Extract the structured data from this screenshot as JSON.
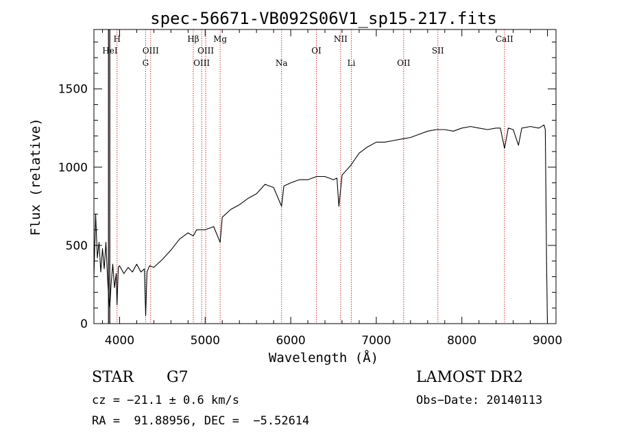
{
  "chart_data": {
    "type": "line",
    "title": "spec-56671-VB092S06V1_sp15-217.fits",
    "xlabel": "Wavelength (Å)",
    "ylabel": "Flux (relative)",
    "xlim": [
      3700,
      9100
    ],
    "ylim": [
      0,
      1880
    ],
    "xticks": [
      4000,
      5000,
      6000,
      7000,
      8000,
      9000
    ],
    "yticks": [
      0,
      500,
      1000,
      1500
    ],
    "grid": false,
    "series": [
      {
        "color": "#000000",
        "x": [
          3700,
          3720,
          3740,
          3760,
          3780,
          3800,
          3820,
          3840,
          3860,
          3875,
          3885,
          3900,
          3920,
          3940,
          3960,
          3970,
          3985,
          4000,
          4050,
          4100,
          4150,
          4200,
          4250,
          4290,
          4305,
          4320,
          4350,
          4400,
          4500,
          4600,
          4700,
          4800,
          4861,
          4900,
          5000,
          5100,
          5175,
          5200,
          5300,
          5400,
          5500,
          5600,
          5700,
          5800,
          5893,
          5920,
          6000,
          6100,
          6200,
          6300,
          6400,
          6500,
          6540,
          6563,
          6600,
          6700,
          6800,
          6900,
          7000,
          7100,
          7200,
          7300,
          7400,
          7500,
          7600,
          7700,
          7800,
          7900,
          8000,
          8100,
          8200,
          8300,
          8400,
          8450,
          8498,
          8542,
          8600,
          8662,
          8700,
          8800,
          8900,
          8960,
          8975,
          8990,
          9000
        ],
        "y": [
          300,
          700,
          420,
          520,
          330,
          480,
          350,
          520,
          280,
          150,
          100,
          250,
          380,
          230,
          320,
          120,
          360,
          370,
          320,
          360,
          330,
          380,
          330,
          350,
          50,
          330,
          370,
          360,
          410,
          470,
          540,
          580,
          560,
          600,
          600,
          620,
          520,
          680,
          730,
          760,
          800,
          830,
          890,
          870,
          750,
          880,
          900,
          920,
          920,
          940,
          940,
          920,
          930,
          750,
          950,
          1010,
          1090,
          1130,
          1160,
          1160,
          1170,
          1180,
          1190,
          1210,
          1230,
          1240,
          1240,
          1230,
          1250,
          1260,
          1250,
          1240,
          1250,
          1250,
          1120,
          1250,
          1240,
          1140,
          1250,
          1260,
          1250,
          1270,
          1240,
          380,
          0
        ]
      }
    ],
    "lines": [
      {
        "label": "HeI",
        "wavelength": 3888,
        "row": 2
      },
      {
        "label": "H",
        "wavelength": 3970,
        "row": 1
      },
      {
        "label": "OIII",
        "wavelength": 4363,
        "row": 2
      },
      {
        "label": "G",
        "wavelength": 4304,
        "row": 3
      },
      {
        "label": "Hβ",
        "wavelength": 4861,
        "row": 1
      },
      {
        "label": "OIII",
        "wavelength": 5007,
        "row": 2
      },
      {
        "label": "OIII",
        "wavelength": 4959,
        "row": 3
      },
      {
        "label": "Mg",
        "wavelength": 5175,
        "row": 1
      },
      {
        "label": "Na",
        "wavelength": 5893,
        "row": 3
      },
      {
        "label": "OI",
        "wavelength": 6300,
        "row": 2
      },
      {
        "label": "NII",
        "wavelength": 6583,
        "row": 1
      },
      {
        "label": "Li",
        "wavelength": 6708,
        "row": 3
      },
      {
        "label": "OII",
        "wavelength": 7320,
        "row": 3
      },
      {
        "label": "SII",
        "wavelength": 7720,
        "row": 2
      },
      {
        "label": "CaII",
        "wavelength": 8498,
        "row": 1
      }
    ],
    "strong_lines": [
      3870,
      3885
    ]
  },
  "info": {
    "object_class": "STAR",
    "subclass": "G7",
    "survey": "LAMOST DR2",
    "cz": "cz = −21.1 ± 0.6 km/s",
    "obs_date": "Obs−Date: 20140113",
    "coords": "RA =  91.88956, DEC =  −5.52614"
  },
  "colors": {
    "spectrum": "#000000",
    "line_markers": "#c00000",
    "axes": "#000000",
    "background": "#ffffff"
  }
}
